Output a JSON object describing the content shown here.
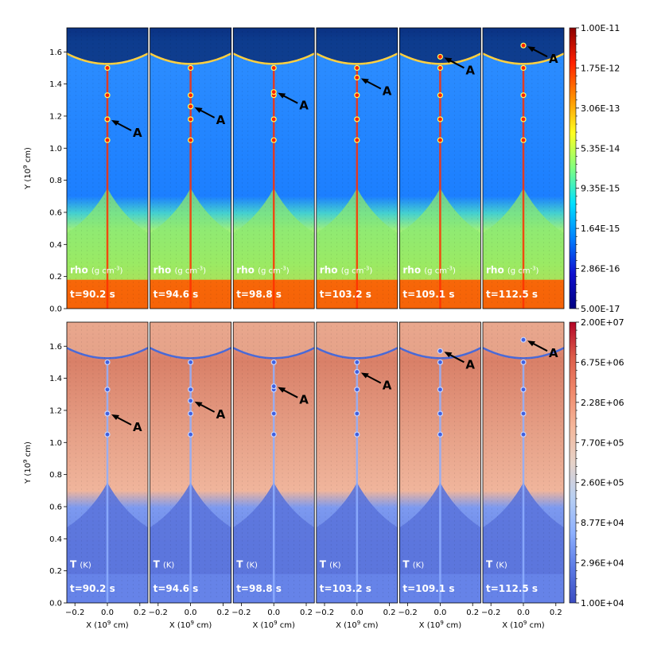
{
  "chart_data": [
    {
      "type": "heatmap",
      "quantity": "density",
      "variable_label": "rho",
      "unit_label": "(g cm",
      "unit_exponent": "-3",
      "unit_close": ")",
      "ylabel": "Y (10",
      "ylabel_exp": "9",
      "ylabel_tail": "cm)",
      "yticks": [
        "0.0",
        "0.2",
        "0.4",
        "0.6",
        "0.8",
        "1.0",
        "1.2",
        "1.4",
        "1.6"
      ],
      "ylim": [
        0.0,
        1.75
      ],
      "xlim": [
        -0.25,
        0.25
      ],
      "colorbar": {
        "scale": "log",
        "ticks": [
          "1.00E-11",
          "1.75E-12",
          "3.06E-13",
          "5.35E-14",
          "9.35E-15",
          "1.64E-15",
          "2.86E-16",
          "5.00E-17"
        ],
        "colors": [
          "#8b0000",
          "#ff2000",
          "#ff9000",
          "#ffff20",
          "#80ff80",
          "#00e0ff",
          "#0080ff",
          "#1010d0",
          "#000080"
        ]
      },
      "panels": [
        {
          "time": "t=90.2 s",
          "arrow_label": "A",
          "feature_y": 1.18
        },
        {
          "time": "t=94.6 s",
          "arrow_label": "A",
          "feature_y": 1.26
        },
        {
          "time": "t=98.8 s",
          "arrow_label": "A",
          "feature_y": 1.35
        },
        {
          "time": "t=103.2 s",
          "arrow_label": "A",
          "feature_y": 1.44
        },
        {
          "time": "t=109.1 s",
          "arrow_label": "A",
          "feature_y": 1.57
        },
        {
          "time": "t=112.5 s",
          "arrow_label": "A",
          "feature_y": 1.64
        }
      ]
    },
    {
      "type": "heatmap",
      "quantity": "temperature",
      "variable_label": "T",
      "unit_label": "(K)",
      "ylabel": "Y (10",
      "ylabel_exp": "9",
      "ylabel_tail": "cm)",
      "xlabel": "X (10",
      "xlabel_exp": "9",
      "xlabel_tail": "cm)",
      "xticks": [
        "−0.2",
        "0.0",
        "0.2"
      ],
      "xtick_values": [
        -0.2,
        0.0,
        0.2
      ],
      "yticks": [
        "0.0",
        "0.2",
        "0.4",
        "0.6",
        "0.8",
        "1.0",
        "1.2",
        "1.4",
        "1.6"
      ],
      "ylim": [
        0.0,
        1.75
      ],
      "xlim": [
        -0.25,
        0.25
      ],
      "colorbar": {
        "scale": "log",
        "ticks": [
          "2.00E+07",
          "6.75E+06",
          "2.28E+06",
          "7.70E+05",
          "2.60E+05",
          "8.77E+04",
          "2.96E+04",
          "1.00E+04"
        ],
        "colors": [
          "#b40426",
          "#dc5d4a",
          "#f08a6c",
          "#f4b89c",
          "#e6d2c8",
          "#b8cff2",
          "#8db0fe",
          "#5b7ae5",
          "#3b4cc0"
        ]
      },
      "panels": [
        {
          "time": "t=90.2 s",
          "arrow_label": "A",
          "feature_y": 1.18
        },
        {
          "time": "t=94.6 s",
          "arrow_label": "A",
          "feature_y": 1.26
        },
        {
          "time": "t=98.8 s",
          "arrow_label": "A",
          "feature_y": 1.35
        },
        {
          "time": "t=103.2 s",
          "arrow_label": "A",
          "feature_y": 1.44
        },
        {
          "time": "t=109.1 s",
          "arrow_label": "A",
          "feature_y": 1.57
        },
        {
          "time": "t=112.5 s",
          "arrow_label": "A",
          "feature_y": 1.64
        }
      ]
    }
  ]
}
